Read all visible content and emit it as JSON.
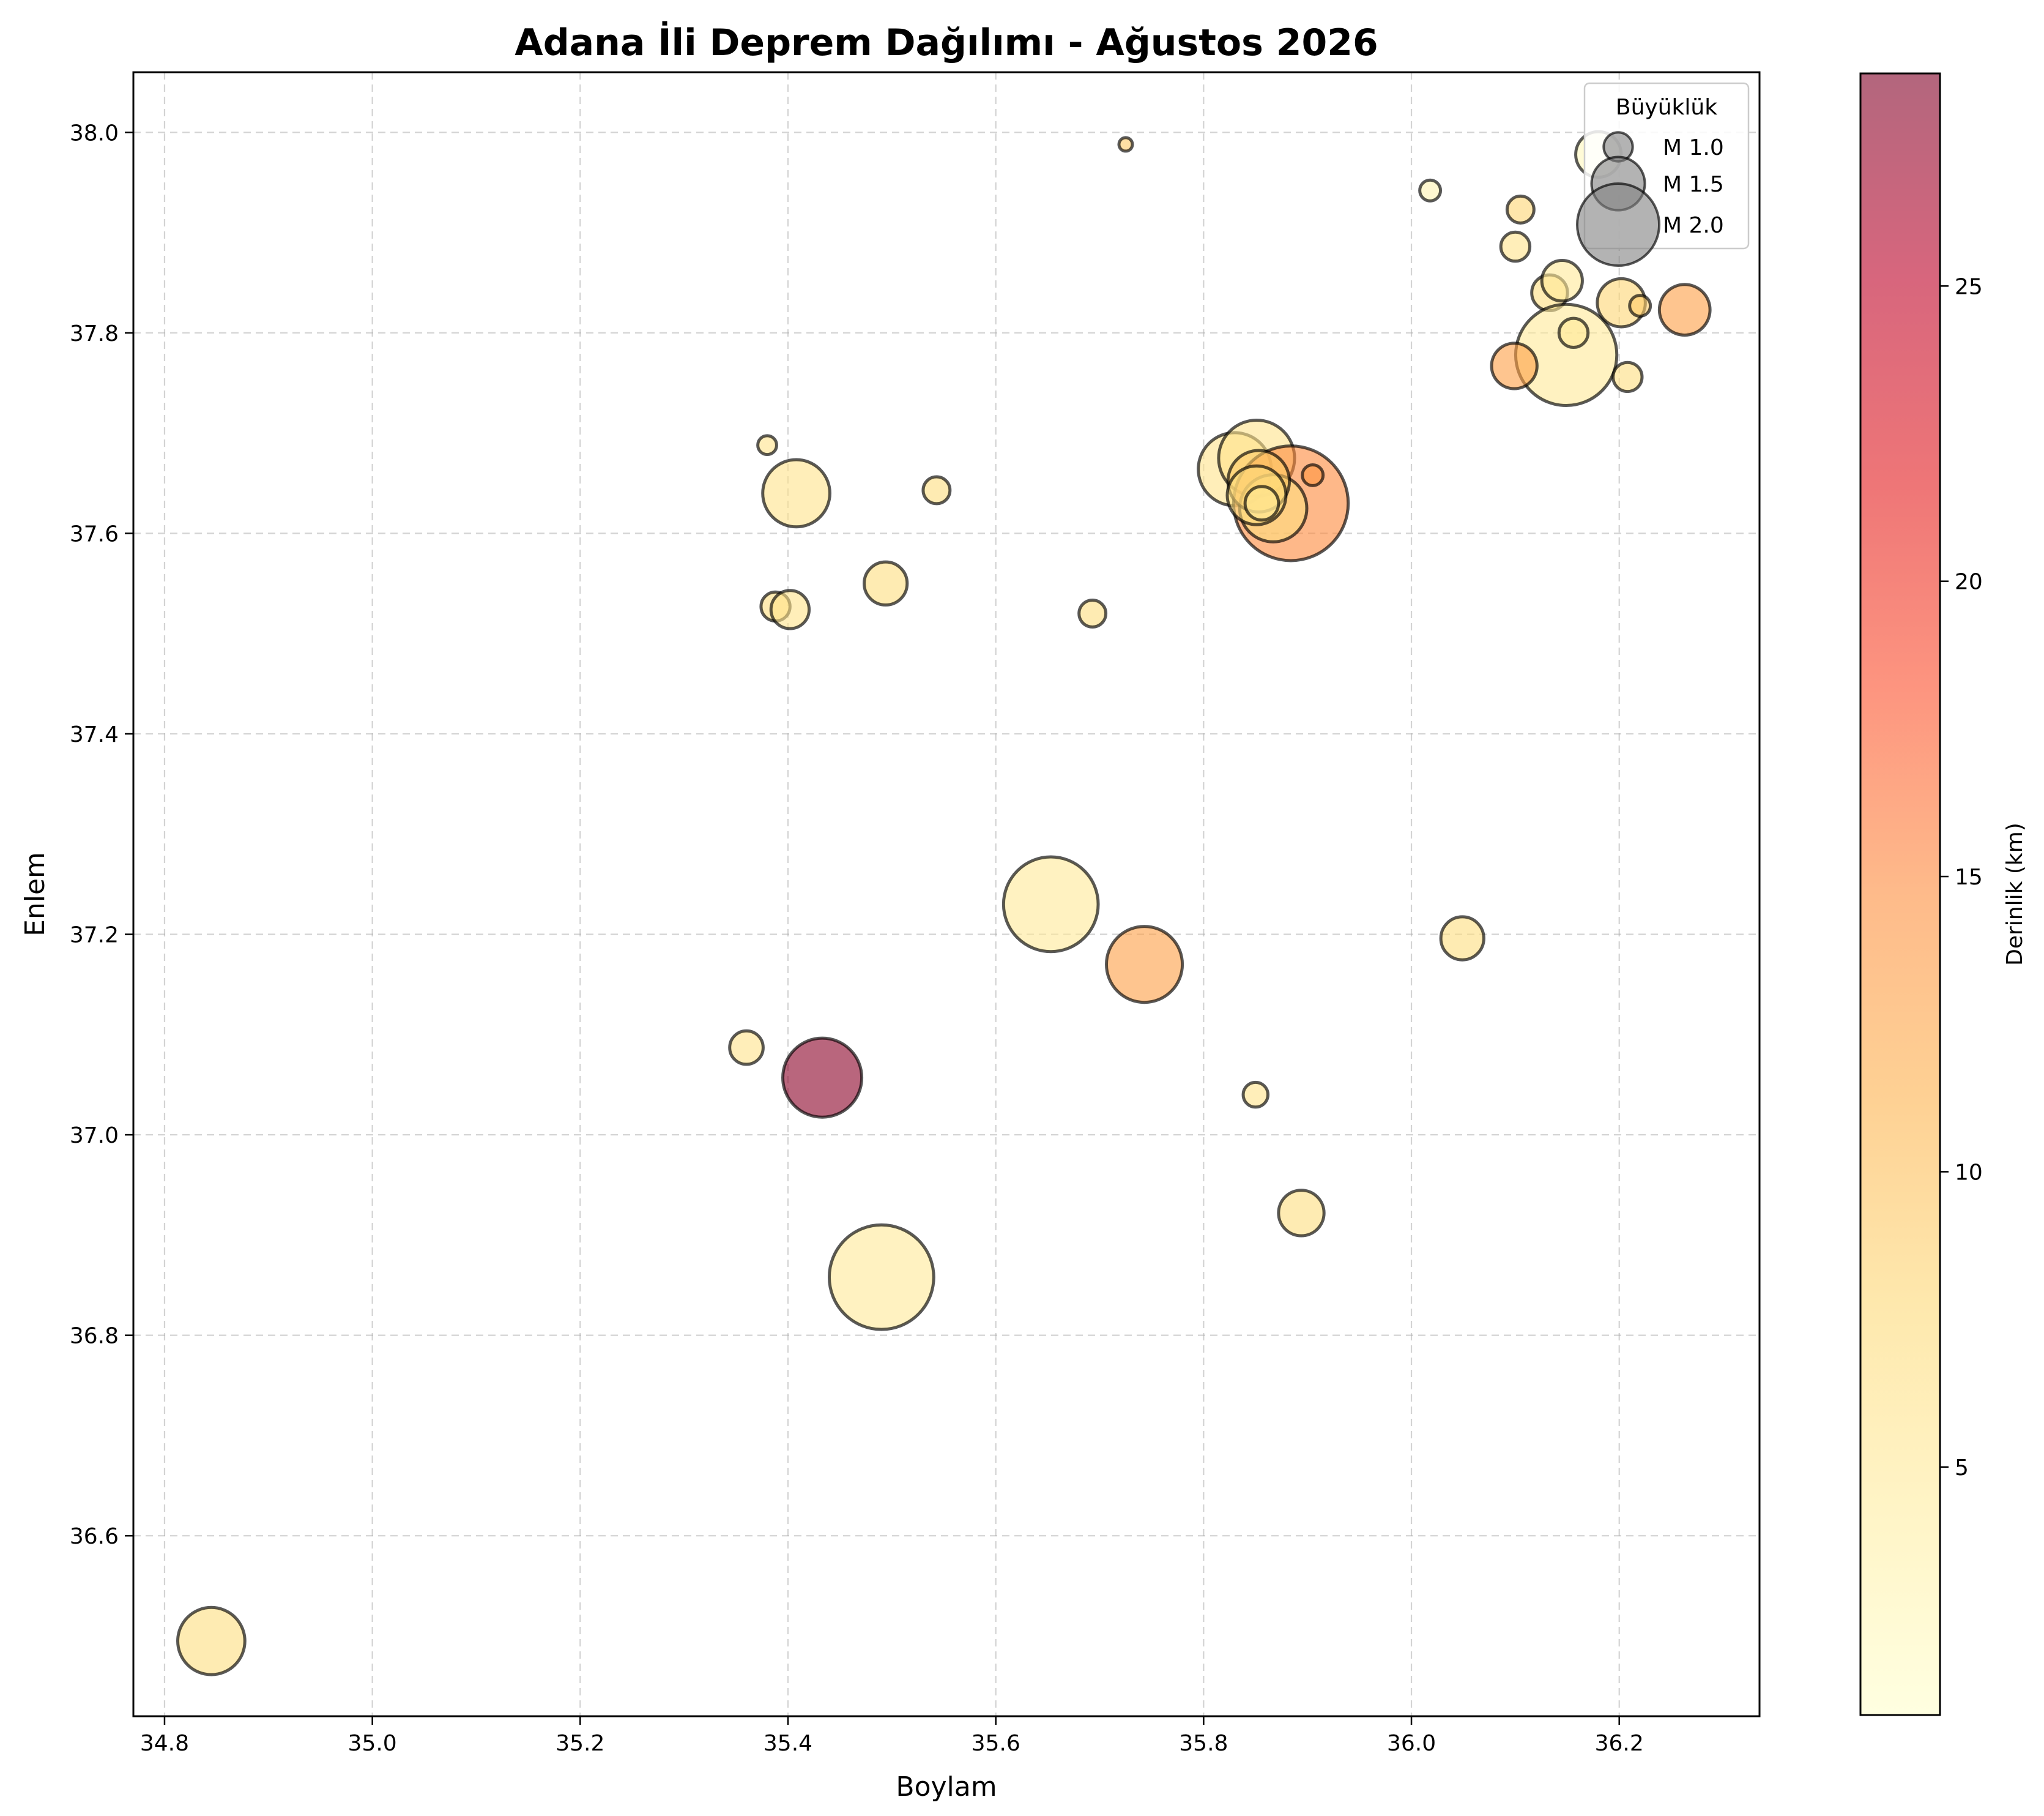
{
  "chart_data": {
    "type": "scatter",
    "title": "Adana İli Deprem Dağılımı - Ağustos 2026",
    "xlabel": "Boylam",
    "ylabel": "Enlem",
    "xlim": [
      34.77,
      36.335
    ],
    "ylim": [
      36.42,
      38.06
    ],
    "xticks": [
      34.8,
      35.0,
      35.2,
      35.4,
      35.6,
      35.8,
      36.0,
      36.2
    ],
    "xtick_labels": [
      "34.8",
      "35.0",
      "35.2",
      "35.4",
      "35.6",
      "35.8",
      "36.0",
      "36.2"
    ],
    "yticks": [
      36.6,
      36.8,
      37.0,
      37.2,
      37.4,
      37.6,
      37.8,
      38.0
    ],
    "ytick_labels": [
      "36.6",
      "36.8",
      "37.0",
      "37.2",
      "37.4",
      "37.6",
      "37.8",
      "38.0"
    ],
    "grid": true,
    "legend": {
      "title": "Büyüklük",
      "placement": "top-right",
      "entries": [
        {
          "label": "M 1.0",
          "magnitude": 1.0
        },
        {
          "label": "M 1.5",
          "magnitude": 1.5
        },
        {
          "label": "M 2.0",
          "magnitude": 2.0
        }
      ]
    },
    "colorbar": {
      "label": "Derinlik (km)",
      "range": [
        0.8,
        28.6
      ],
      "ticks": [
        5,
        10,
        15,
        20,
        25
      ],
      "tick_labels": [
        "5",
        "10",
        "15",
        "20",
        "25"
      ],
      "colormap": [
        "#ffffcc",
        "#ffeda0",
        "#fed976",
        "#feb24c",
        "#fd8d3c",
        "#fc4e2a",
        "#e31a1c",
        "#bd0026",
        "#800026"
      ],
      "alpha": 0.6
    },
    "points": [
      {
        "lon": 34.845,
        "lat": 36.495,
        "mag": 1.75,
        "depth": 7
      },
      {
        "lon": 35.36,
        "lat": 37.087,
        "mag": 1.1,
        "depth": 6
      },
      {
        "lon": 35.433,
        "lat": 37.057,
        "mag": 1.95,
        "depth": 28
      },
      {
        "lon": 35.49,
        "lat": 36.858,
        "mag": 2.35,
        "depth": 5
      },
      {
        "lon": 35.653,
        "lat": 37.23,
        "mag": 2.2,
        "depth": 5
      },
      {
        "lon": 35.743,
        "lat": 37.17,
        "mag": 1.9,
        "depth": 13
      },
      {
        "lon": 35.85,
        "lat": 37.04,
        "mag": 0.9,
        "depth": 6
      },
      {
        "lon": 35.894,
        "lat": 36.922,
        "mag": 1.35,
        "depth": 7
      },
      {
        "lon": 36.049,
        "lat": 37.196,
        "mag": 1.3,
        "depth": 7
      },
      {
        "lon": 35.38,
        "lat": 37.688,
        "mag": 0.75,
        "depth": 6
      },
      {
        "lon": 35.408,
        "lat": 37.64,
        "mag": 1.75,
        "depth": 6
      },
      {
        "lon": 35.388,
        "lat": 37.527,
        "mag": 1.0,
        "depth": 7
      },
      {
        "lon": 35.402,
        "lat": 37.524,
        "mag": 1.2,
        "depth": 6
      },
      {
        "lon": 35.494,
        "lat": 37.55,
        "mag": 1.3,
        "depth": 7
      },
      {
        "lon": 35.543,
        "lat": 37.643,
        "mag": 0.95,
        "depth": 7
      },
      {
        "lon": 35.693,
        "lat": 37.52,
        "mag": 0.95,
        "depth": 7
      },
      {
        "lon": 35.725,
        "lat": 37.988,
        "mag": 0.6,
        "depth": 9
      },
      {
        "lon": 35.83,
        "lat": 37.664,
        "mag": 1.85,
        "depth": 6
      },
      {
        "lon": 35.851,
        "lat": 37.675,
        "mag": 1.9,
        "depth": 6
      },
      {
        "lon": 35.884,
        "lat": 37.63,
        "mag": 2.5,
        "depth": 15
      },
      {
        "lon": 35.867,
        "lat": 37.625,
        "mag": 1.75,
        "depth": 7
      },
      {
        "lon": 35.853,
        "lat": 37.652,
        "mag": 1.65,
        "depth": 9
      },
      {
        "lon": 35.851,
        "lat": 37.638,
        "mag": 1.6,
        "depth": 7
      },
      {
        "lon": 35.856,
        "lat": 37.63,
        "mag": 1.1,
        "depth": 5
      },
      {
        "lon": 35.905,
        "lat": 37.658,
        "mag": 0.8,
        "depth": 14
      },
      {
        "lon": 36.018,
        "lat": 37.942,
        "mag": 0.8,
        "depth": 3
      },
      {
        "lon": 36.105,
        "lat": 37.923,
        "mag": 0.95,
        "depth": 8
      },
      {
        "lon": 36.1,
        "lat": 37.886,
        "mag": 1.0,
        "depth": 6
      },
      {
        "lon": 36.133,
        "lat": 37.84,
        "mag": 1.15,
        "depth": 7
      },
      {
        "lon": 36.145,
        "lat": 37.852,
        "mag": 1.25,
        "depth": 5
      },
      {
        "lon": 36.18,
        "lat": 37.978,
        "mag": 1.35,
        "depth": 2
      },
      {
        "lon": 36.149,
        "lat": 37.778,
        "mag": 2.3,
        "depth": 5
      },
      {
        "lon": 36.156,
        "lat": 37.8,
        "mag": 1.0,
        "depth": 5
      },
      {
        "lon": 36.202,
        "lat": 37.83,
        "mag": 1.4,
        "depth": 8
      },
      {
        "lon": 36.22,
        "lat": 37.827,
        "mag": 0.8,
        "depth": 9
      },
      {
        "lon": 36.263,
        "lat": 37.823,
        "mag": 1.45,
        "depth": 13
      },
      {
        "lon": 36.099,
        "lat": 37.767,
        "mag": 1.35,
        "depth": 13
      },
      {
        "lon": 36.208,
        "lat": 37.756,
        "mag": 1.0,
        "depth": 7
      }
    ]
  }
}
